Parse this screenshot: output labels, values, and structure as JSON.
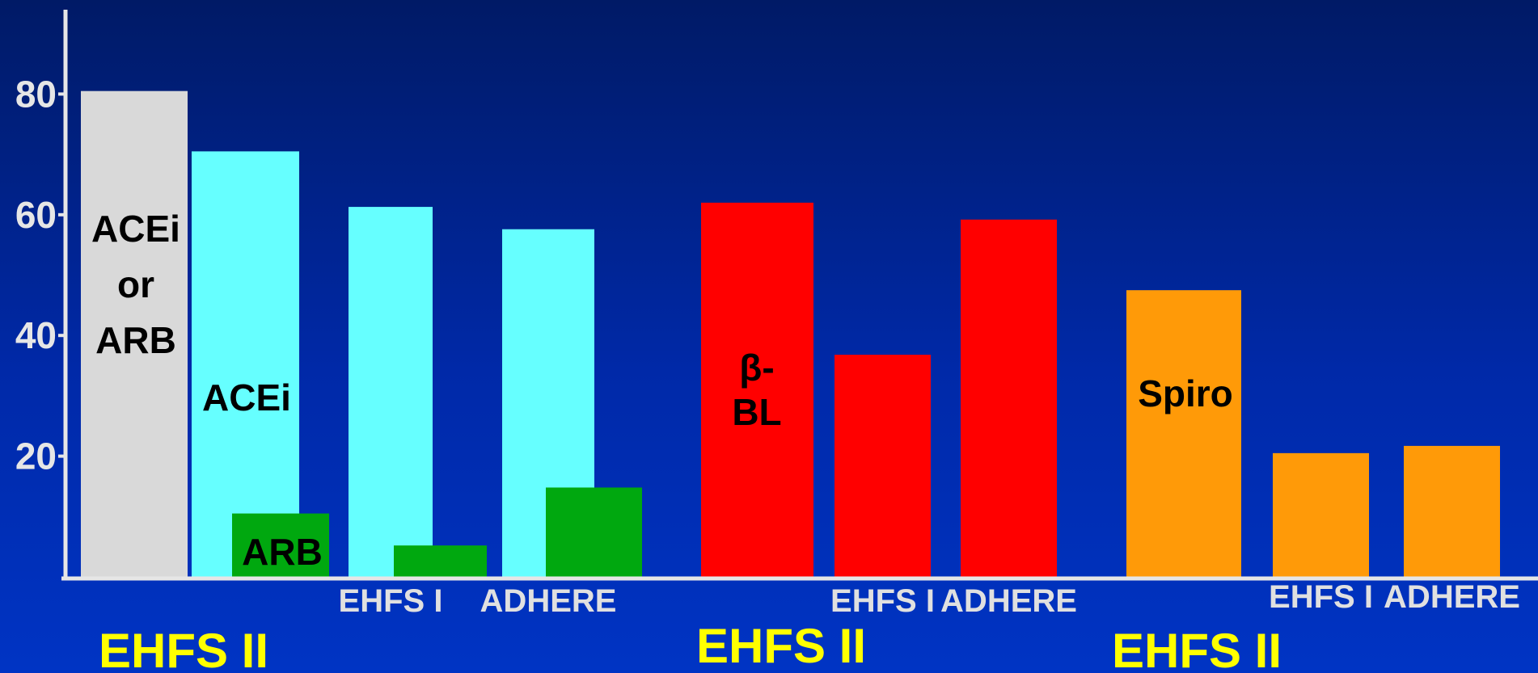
{
  "chart_data": {
    "type": "bar",
    "title": "",
    "xlabel": "",
    "ylabel": "",
    "ylim": [
      0,
      92
    ],
    "yticks": [
      20,
      40,
      60,
      80
    ],
    "grid": false,
    "colors": {
      "acei_or_arb": "#d9d9d9",
      "acei": "#66ffff",
      "arb": "#00a80f",
      "beta_bl": "#ff0000",
      "spiro": "#ff9a08",
      "axis": "#e6e6e6",
      "tick_label": "#e6e6e6",
      "source_label": "#e0e0e0",
      "group_label": "#ffff00",
      "bar_text": "#000000"
    },
    "groups": [
      {
        "label": "EHFS II",
        "bars": [
          {
            "value": 80.5,
            "color_key": "acei_or_arb",
            "label_lines": [
              "ACEi",
              "or",
              "ARB"
            ]
          },
          {
            "value": 70.5,
            "color_key": "acei",
            "label_lines": [
              "ACEi"
            ]
          },
          {
            "value": 10.5,
            "color_key": "arb",
            "label_lines": [
              "ARB"
            ]
          },
          {
            "value": 61.3,
            "color_key": "acei",
            "label_lines": [],
            "source": "EHFS I"
          },
          {
            "value": 5.2,
            "color_key": "arb",
            "label_lines": []
          },
          {
            "value": 57.6,
            "color_key": "acei",
            "label_lines": [],
            "source": "ADHERE"
          },
          {
            "value": 14.8,
            "color_key": "arb",
            "label_lines": []
          }
        ]
      },
      {
        "label": "EHFS II",
        "bars": [
          {
            "value": 62.0,
            "color_key": "beta_bl",
            "label_lines": [
              "β-",
              "BL"
            ]
          },
          {
            "value": 36.8,
            "color_key": "beta_bl",
            "label_lines": [],
            "source": "EHFS I"
          },
          {
            "value": 59.2,
            "color_key": "beta_bl",
            "label_lines": [],
            "source": "ADHERE"
          }
        ]
      },
      {
        "label": "EHFS II",
        "bars": [
          {
            "value": 47.5,
            "color_key": "spiro",
            "label_lines": [
              "Spiro"
            ]
          },
          {
            "value": 20.5,
            "color_key": "spiro",
            "label_lines": [],
            "source": "EHFS I"
          },
          {
            "value": 21.7,
            "color_key": "spiro",
            "label_lines": [],
            "source": "ADHERE"
          }
        ]
      }
    ]
  }
}
